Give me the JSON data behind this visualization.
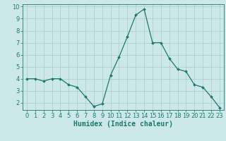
{
  "x": [
    0,
    1,
    2,
    3,
    4,
    5,
    6,
    7,
    8,
    9,
    10,
    11,
    12,
    13,
    14,
    15,
    16,
    17,
    18,
    19,
    20,
    21,
    22,
    23
  ],
  "y": [
    4.0,
    4.0,
    3.8,
    4.0,
    4.0,
    3.5,
    3.3,
    2.5,
    1.7,
    1.9,
    4.3,
    5.8,
    7.5,
    9.3,
    9.8,
    7.0,
    7.0,
    5.7,
    4.8,
    4.6,
    3.5,
    3.3,
    2.5,
    1.6
  ],
  "line_color": "#1a7a6e",
  "marker": "D",
  "marker_size": 2.0,
  "bg_color": "#cce8e8",
  "grid_major_color": "#b0d0d0",
  "grid_minor_color": "#c4dede",
  "tick_color": "#1a7a6e",
  "xlabel": "Humidex (Indice chaleur)",
  "xlabel_fontsize": 7,
  "xlim": [
    -0.5,
    23.5
  ],
  "ylim": [
    1.4,
    10.2
  ],
  "yticks": [
    2,
    3,
    4,
    5,
    6,
    7,
    8,
    9,
    10
  ],
  "xticks": [
    0,
    1,
    2,
    3,
    4,
    5,
    6,
    7,
    8,
    9,
    10,
    11,
    12,
    13,
    14,
    15,
    16,
    17,
    18,
    19,
    20,
    21,
    22,
    23
  ],
  "tick_fontsize": 6,
  "line_width": 0.9
}
